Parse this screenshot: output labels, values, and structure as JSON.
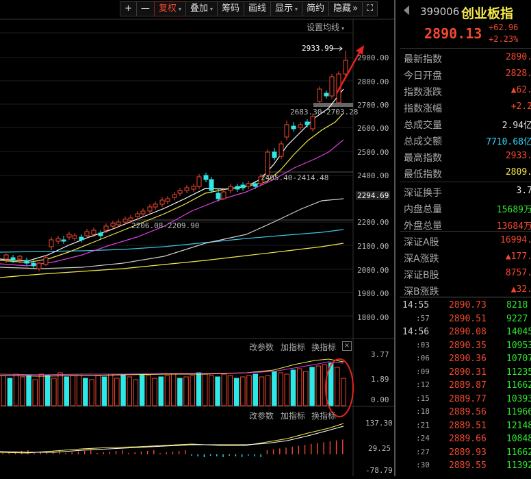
{
  "toolbar": {
    "plus": "+",
    "minus": "—",
    "fuquan": "复权",
    "diejia": "叠加",
    "chouma": "筹码",
    "huaxian": "画线",
    "xianshi": "显示",
    "jianyue": "简约",
    "yincang": "隐藏",
    "expand": "»",
    "fullscreen": "⛶"
  },
  "chart_header": {
    "setting": "设置均线"
  },
  "price_axis": [
    "2900.00",
    "2800.00",
    "2700.00",
    "2600.00",
    "2500.00",
    "2400.00",
    "2294.69",
    "2200.00",
    "2100.00",
    "2000.00",
    "1900.00",
    "1800.00"
  ],
  "annotations": {
    "high": "2933.99",
    "range1": "2683.30-2703.28",
    "range2": "2405.40-2414.48",
    "range3": "2206.08-2209.90"
  },
  "vol_panel": {
    "btn1": "改参数",
    "btn2": "加指标",
    "btn3": "换指标",
    "close": "×",
    "axis": [
      "3.77",
      "1.89",
      "0.00"
    ]
  },
  "macd_panel": {
    "btn1": "改参数",
    "btn2": "加指标",
    "btn3": "换指标",
    "axis": [
      "137.30",
      "29.25",
      "-78.79"
    ]
  },
  "quote": {
    "code": "399006",
    "name": "创业板指",
    "price": "2890.13",
    "change": "+62.96",
    "change_pct": "+2.23%"
  },
  "stats1": [
    {
      "label": "最新指数",
      "value": "2890.",
      "color": "#f5492f"
    },
    {
      "label": "今日开盘",
      "value": "2828.",
      "color": "#f5492f"
    },
    {
      "label": "指数涨跌",
      "value": "▲62.",
      "color": "#f5492f"
    },
    {
      "label": "指数涨幅",
      "value": "+2.2",
      "color": "#f5492f"
    },
    {
      "label": "总成交量",
      "value": "2.94亿",
      "color": "#e8e8e8"
    },
    {
      "label": "总成交额",
      "value": "7710.68亿",
      "color": "#33ddff"
    },
    {
      "label": "最高指数",
      "value": "2933.",
      "color": "#f5492f"
    },
    {
      "label": "最低指数",
      "value": "2809.",
      "color": "#f5e94a"
    }
  ],
  "stats2": [
    {
      "label": "深证换手",
      "value": "3.7",
      "color": "#e8e8e8"
    },
    {
      "label": "内盘总量",
      "value": "15689万",
      "color": "#2ee82e"
    },
    {
      "label": "外盘总量",
      "value": "13684万",
      "color": "#f5492f"
    }
  ],
  "stats3": [
    {
      "label": "深证A股",
      "value": "16994.",
      "color": "#f5492f"
    },
    {
      "label": "深A涨跌",
      "value": "▲177.",
      "color": "#f5492f"
    },
    {
      "label": "深证B股",
      "value": "8757.",
      "color": "#f5492f"
    },
    {
      "label": "深B涨跌",
      "value": "▲32.",
      "color": "#f5492f"
    }
  ],
  "ticks": [
    {
      "time": "14:55",
      "small": false,
      "price": "2890.73",
      "vol": "8218"
    },
    {
      "time": ":57",
      "small": true,
      "price": "2890.51",
      "vol": "9227"
    },
    {
      "time": "14:56",
      "small": false,
      "price": "2890.08",
      "vol": "14045"
    },
    {
      "time": ":03",
      "small": true,
      "price": "2890.35",
      "vol": "10953"
    },
    {
      "time": ":06",
      "small": true,
      "price": "2890.36",
      "vol": "10707"
    },
    {
      "time": ":09",
      "small": true,
      "price": "2890.31",
      "vol": "11235"
    },
    {
      "time": ":12",
      "small": true,
      "price": "2889.87",
      "vol": "11662"
    },
    {
      "time": ":15",
      "small": true,
      "price": "2889.77",
      "vol": "10393"
    },
    {
      "time": ":18",
      "small": true,
      "price": "2889.56",
      "vol": "11966"
    },
    {
      "time": ":21",
      "small": true,
      "price": "2889.51",
      "vol": "12148"
    },
    {
      "time": ":24",
      "small": true,
      "price": "2889.66",
      "vol": "10848"
    },
    {
      "time": ":27",
      "small": true,
      "price": "2889.93",
      "vol": "11662"
    },
    {
      "time": ":30",
      "small": true,
      "price": "2889.55",
      "vol": "11392"
    }
  ]
}
